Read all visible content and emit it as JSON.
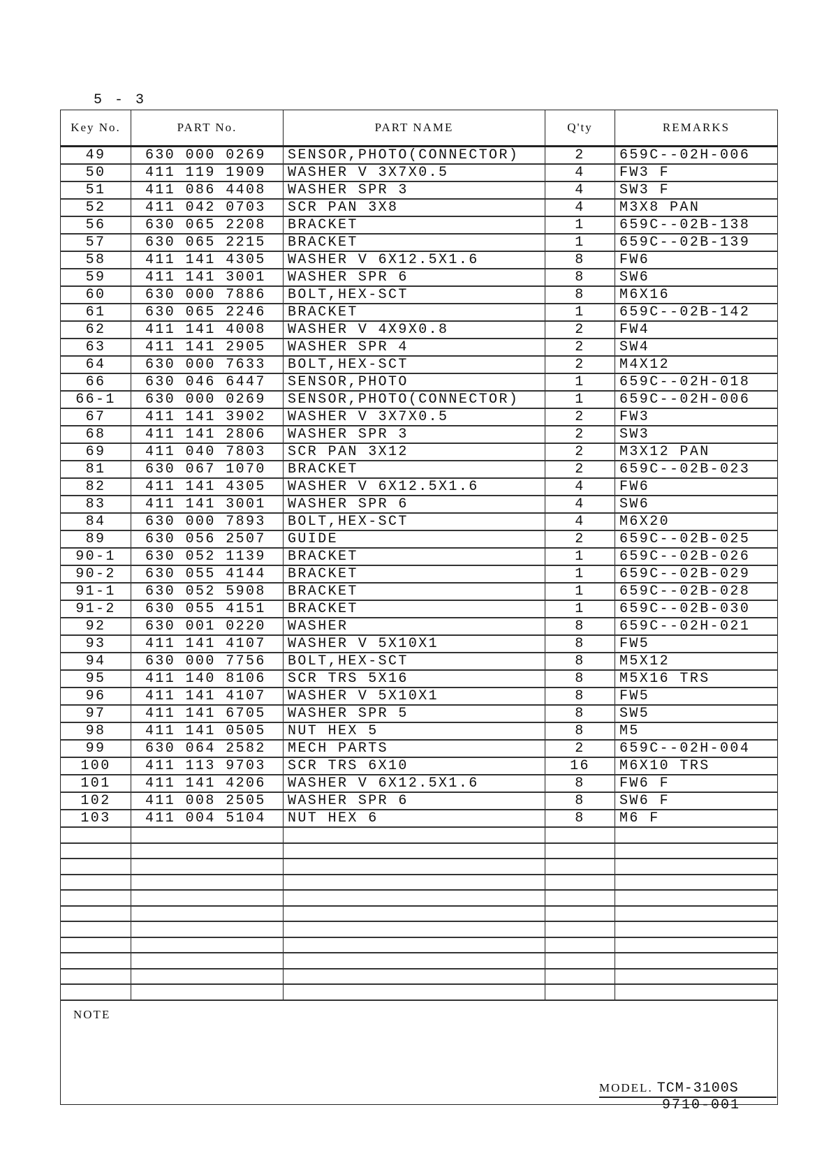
{
  "page_number": "5 - 3",
  "headers": {
    "key_no": "Key No.",
    "part_no": "PART No.",
    "part_name": "PART NAME",
    "qty": "Q'ty",
    "remarks": "REMARKS"
  },
  "rows": [
    {
      "key": "49",
      "part_no": "630 000 0269",
      "name": "SENSOR,PHOTO(CONNECTOR)",
      "qty": "2",
      "remarks": "659C--02H-006"
    },
    {
      "key": "50",
      "part_no": "411 119 1909",
      "name": "WASHER V 3X7X0.5",
      "qty": "4",
      "remarks": "FW3 F"
    },
    {
      "key": "51",
      "part_no": "411 086 4408",
      "name": "WASHER SPR 3",
      "qty": "4",
      "remarks": "SW3 F"
    },
    {
      "key": "52",
      "part_no": "411 042 0703",
      "name": "SCR PAN 3X8",
      "qty": "4",
      "remarks": "M3X8 PAN"
    },
    {
      "key": "56",
      "part_no": "630 065 2208",
      "name": "BRACKET",
      "qty": "1",
      "remarks": "659C--02B-138"
    },
    {
      "key": "57",
      "part_no": "630 065 2215",
      "name": "BRACKET",
      "qty": "1",
      "remarks": "659C--02B-139"
    },
    {
      "key": "58",
      "part_no": "411 141 4305",
      "name": "WASHER V 6X12.5X1.6",
      "qty": "8",
      "remarks": "FW6"
    },
    {
      "key": "59",
      "part_no": "411 141 3001",
      "name": "WASHER SPR 6",
      "qty": "8",
      "remarks": "SW6"
    },
    {
      "key": "60",
      "part_no": "630 000 7886",
      "name": "BOLT,HEX-SCT",
      "qty": "8",
      "remarks": "M6X16"
    },
    {
      "key": "61",
      "part_no": "630 065 2246",
      "name": "BRACKET",
      "qty": "1",
      "remarks": "659C--02B-142"
    },
    {
      "key": "62",
      "part_no": "411 141 4008",
      "name": "WASHER V 4X9X0.8",
      "qty": "2",
      "remarks": "FW4"
    },
    {
      "key": "63",
      "part_no": "411 141 2905",
      "name": "WASHER SPR 4",
      "qty": "2",
      "remarks": "SW4"
    },
    {
      "key": "64",
      "part_no": "630 000 7633",
      "name": "BOLT,HEX-SCT",
      "qty": "2",
      "remarks": "M4X12"
    },
    {
      "key": "66",
      "part_no": "630 046 6447",
      "name": "SENSOR,PHOTO",
      "qty": "1",
      "remarks": "659C--02H-018"
    },
    {
      "key": "66-1",
      "part_no": "630 000 0269",
      "name": "SENSOR,PHOTO(CONNECTOR)",
      "qty": "1",
      "remarks": "659C--02H-006"
    },
    {
      "key": "67",
      "part_no": "411 141 3902",
      "name": "WASHER V 3X7X0.5",
      "qty": "2",
      "remarks": "FW3"
    },
    {
      "key": "68",
      "part_no": "411 141 2806",
      "name": "WASHER SPR 3",
      "qty": "2",
      "remarks": "SW3"
    },
    {
      "key": "69",
      "part_no": "411 040 7803",
      "name": "SCR PAN 3X12",
      "qty": "2",
      "remarks": "M3X12 PAN"
    },
    {
      "key": "81",
      "part_no": "630 067 1070",
      "name": "BRACKET",
      "qty": "2",
      "remarks": "659C--02B-023"
    },
    {
      "key": "82",
      "part_no": "411 141 4305",
      "name": "WASHER V 6X12.5X1.6",
      "qty": "4",
      "remarks": "FW6"
    },
    {
      "key": "83",
      "part_no": "411 141 3001",
      "name": "WASHER SPR 6",
      "qty": "4",
      "remarks": "SW6"
    },
    {
      "key": "84",
      "part_no": "630 000 7893",
      "name": "BOLT,HEX-SCT",
      "qty": "4",
      "remarks": "M6X20"
    },
    {
      "key": "89",
      "part_no": "630 056 2507",
      "name": "GUIDE",
      "qty": "2",
      "remarks": "659C--02B-025"
    },
    {
      "key": "90-1",
      "part_no": "630 052 1139",
      "name": "BRACKET",
      "qty": "1",
      "remarks": "659C--02B-026"
    },
    {
      "key": "90-2",
      "part_no": "630 055 4144",
      "name": "BRACKET",
      "qty": "1",
      "remarks": "659C--02B-029"
    },
    {
      "key": "91-1",
      "part_no": "630 052 5908",
      "name": "BRACKET",
      "qty": "1",
      "remarks": "659C--02B-028"
    },
    {
      "key": "91-2",
      "part_no": "630 055 4151",
      "name": "BRACKET",
      "qty": "1",
      "remarks": "659C--02B-030"
    },
    {
      "key": "92",
      "part_no": "630 001 0220",
      "name": "WASHER",
      "qty": "8",
      "remarks": "659C--02H-021"
    },
    {
      "key": "93",
      "part_no": "411 141 4107",
      "name": "WASHER V 5X10X1",
      "qty": "8",
      "remarks": "FW5"
    },
    {
      "key": "94",
      "part_no": "630 000 7756",
      "name": "BOLT,HEX-SCT",
      "qty": "8",
      "remarks": "M5X12"
    },
    {
      "key": "95",
      "part_no": "411 140 8106",
      "name": "SCR TRS 5X16",
      "qty": "8",
      "remarks": "M5X16 TRS"
    },
    {
      "key": "96",
      "part_no": "411 141 4107",
      "name": "WASHER V 5X10X1",
      "qty": "8",
      "remarks": "FW5"
    },
    {
      "key": "97",
      "part_no": "411 141 6705",
      "name": "WASHER SPR 5",
      "qty": "8",
      "remarks": "SW5"
    },
    {
      "key": "98",
      "part_no": "411 141 0505",
      "name": "NUT HEX 5",
      "qty": "8",
      "remarks": "M5"
    },
    {
      "key": "99",
      "part_no": "630 064 2582",
      "name": "MECH PARTS",
      "qty": "2",
      "remarks": "659C--02H-004"
    },
    {
      "key": "100",
      "part_no": "411 113 9703",
      "name": "SCR TRS 6X10",
      "qty": "16",
      "remarks": "M6X10 TRS"
    },
    {
      "key": "101",
      "part_no": "411 141 4206",
      "name": "WASHER V 6X12.5X1.6",
      "qty": "8",
      "remarks": "FW6 F"
    },
    {
      "key": "102",
      "part_no": "411 008 2505",
      "name": "WASHER SPR 6",
      "qty": "8",
      "remarks": "SW6 F"
    },
    {
      "key": "103",
      "part_no": "411 004 5104",
      "name": "NUT HEX 6",
      "qty": "8",
      "remarks": "M6 F"
    }
  ],
  "note_label": "NOTE",
  "model_label": "MODEL.",
  "model_value": "TCM-3100S",
  "doc_number": "9710-001"
}
